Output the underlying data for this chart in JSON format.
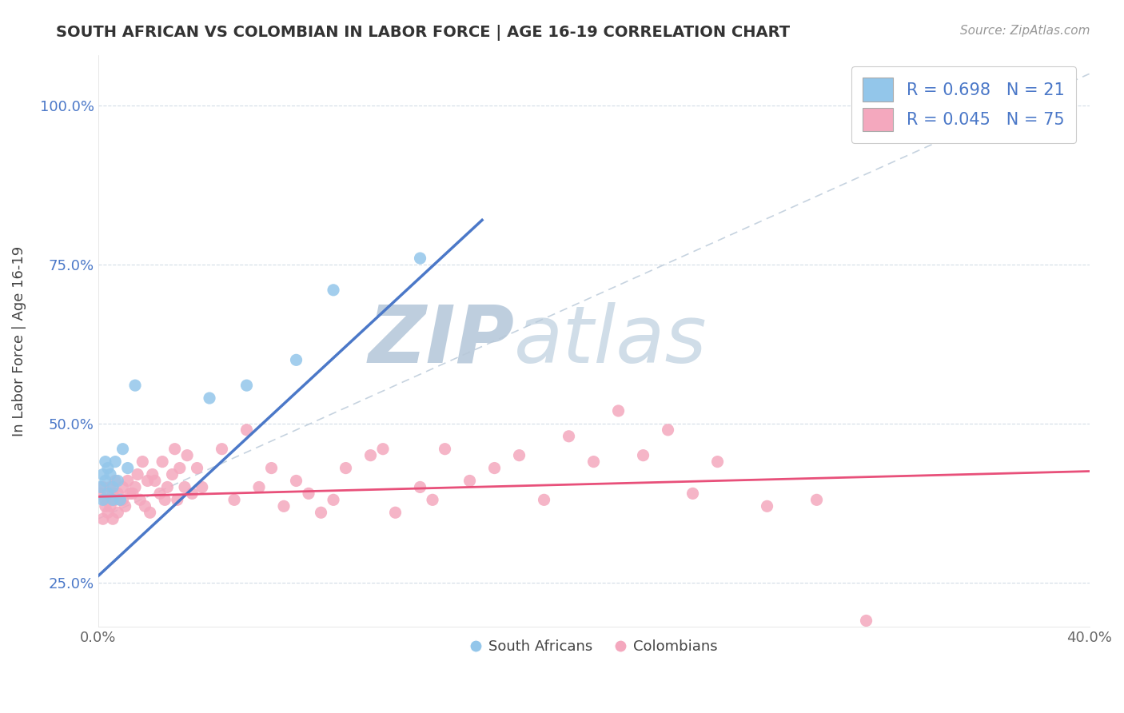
{
  "title": "SOUTH AFRICAN VS COLOMBIAN IN LABOR FORCE | AGE 16-19 CORRELATION CHART",
  "source": "Source: ZipAtlas.com",
  "ylabel": "In Labor Force | Age 16-19",
  "xlim": [
    0.0,
    0.4
  ],
  "ylim": [
    0.18,
    1.08
  ],
  "xticks": [
    0.0,
    0.05,
    0.1,
    0.15,
    0.2,
    0.25,
    0.3,
    0.35,
    0.4
  ],
  "xtick_labels": [
    "0.0%",
    "",
    "",
    "",
    "",
    "",
    "",
    "",
    "40.0%"
  ],
  "ytick_vals": [
    0.25,
    0.5,
    0.75,
    1.0
  ],
  "ytick_labels": [
    "25.0%",
    "50.0%",
    "75.0%",
    "100.0%"
  ],
  "sa_color": "#93C6EA",
  "co_color": "#F4A8BE",
  "sa_line_color": "#4B78C8",
  "co_line_color": "#E8507A",
  "ref_line_color": "#B8C8D8",
  "watermark_color": "#D8E4EE",
  "legend_sa_label": "R = 0.698   N = 21",
  "legend_co_label": "R = 0.045   N = 75",
  "sa_scatter_x": [
    0.001,
    0.002,
    0.002,
    0.003,
    0.003,
    0.004,
    0.004,
    0.005,
    0.006,
    0.006,
    0.007,
    0.008,
    0.009,
    0.01,
    0.012,
    0.015,
    0.045,
    0.06,
    0.08,
    0.095,
    0.13
  ],
  "sa_scatter_y": [
    0.4,
    0.42,
    0.38,
    0.44,
    0.41,
    0.43,
    0.39,
    0.42,
    0.4,
    0.38,
    0.44,
    0.41,
    0.38,
    0.46,
    0.43,
    0.56,
    0.54,
    0.56,
    0.6,
    0.71,
    0.76
  ],
  "co_scatter_x": [
    0.001,
    0.002,
    0.002,
    0.003,
    0.003,
    0.004,
    0.004,
    0.005,
    0.005,
    0.006,
    0.006,
    0.007,
    0.007,
    0.008,
    0.008,
    0.009,
    0.01,
    0.01,
    0.011,
    0.012,
    0.013,
    0.014,
    0.015,
    0.016,
    0.017,
    0.018,
    0.019,
    0.02,
    0.021,
    0.022,
    0.023,
    0.025,
    0.026,
    0.027,
    0.028,
    0.03,
    0.031,
    0.032,
    0.033,
    0.035,
    0.036,
    0.038,
    0.04,
    0.042,
    0.05,
    0.055,
    0.06,
    0.065,
    0.07,
    0.075,
    0.08,
    0.085,
    0.09,
    0.095,
    0.1,
    0.11,
    0.115,
    0.12,
    0.13,
    0.135,
    0.14,
    0.15,
    0.16,
    0.17,
    0.18,
    0.19,
    0.2,
    0.21,
    0.22,
    0.23,
    0.24,
    0.25,
    0.27,
    0.29,
    0.31
  ],
  "co_scatter_y": [
    0.39,
    0.4,
    0.35,
    0.38,
    0.37,
    0.36,
    0.38,
    0.4,
    0.37,
    0.39,
    0.35,
    0.41,
    0.38,
    0.36,
    0.39,
    0.38,
    0.4,
    0.38,
    0.37,
    0.41,
    0.39,
    0.39,
    0.4,
    0.42,
    0.38,
    0.44,
    0.37,
    0.41,
    0.36,
    0.42,
    0.41,
    0.39,
    0.44,
    0.38,
    0.4,
    0.42,
    0.46,
    0.38,
    0.43,
    0.4,
    0.45,
    0.39,
    0.43,
    0.4,
    0.46,
    0.38,
    0.49,
    0.4,
    0.43,
    0.37,
    0.41,
    0.39,
    0.36,
    0.38,
    0.43,
    0.45,
    0.46,
    0.36,
    0.4,
    0.38,
    0.46,
    0.41,
    0.43,
    0.45,
    0.38,
    0.48,
    0.44,
    0.52,
    0.45,
    0.49,
    0.39,
    0.44,
    0.37,
    0.38,
    0.19
  ],
  "sa_trend_x": [
    0.0,
    0.155
  ],
  "sa_trend_y": [
    0.26,
    0.82
  ],
  "co_trend_x": [
    0.0,
    0.4
  ],
  "co_trend_y": [
    0.385,
    0.425
  ]
}
